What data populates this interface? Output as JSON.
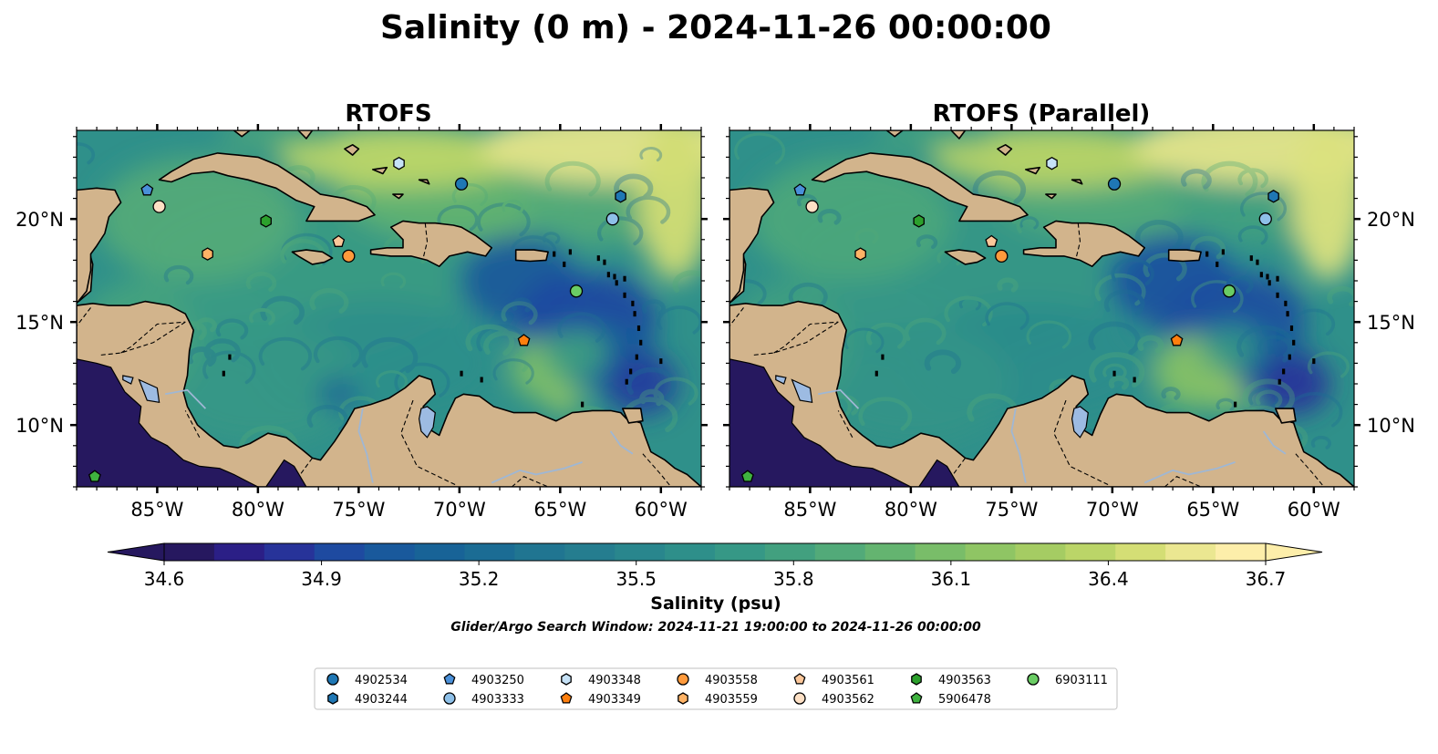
{
  "title": "Salinity (0 m) - 2024-11-26 00:00:00",
  "panels": [
    {
      "title": "RTOFS",
      "y_ticks_side": "left"
    },
    {
      "title": "RTOFS (Parallel)",
      "y_ticks_side": "right"
    }
  ],
  "map": {
    "lon_range": [
      -89,
      -58
    ],
    "lat_range": [
      7,
      24.3
    ],
    "lon_ticks": [
      {
        "v": -85,
        "label": "85°W"
      },
      {
        "v": -80,
        "label": "80°W"
      },
      {
        "v": -75,
        "label": "75°W"
      },
      {
        "v": -70,
        "label": "70°W"
      },
      {
        "v": -65,
        "label": "65°W"
      },
      {
        "v": -60,
        "label": "60°W"
      }
    ],
    "lat_ticks": [
      {
        "v": 10,
        "label": "10°N"
      },
      {
        "v": 15,
        "label": "15°N"
      },
      {
        "v": 20,
        "label": "20°N"
      }
    ],
    "land_color": "#d2b48c",
    "lake_color": "#9dbbe2",
    "river_color": "#9fb7d4"
  },
  "colorbar": {
    "ticks": [
      "34.6",
      "34.9",
      "35.2",
      "35.5",
      "35.8",
      "36.1",
      "36.4",
      "36.7"
    ],
    "label": "Salinity (psu)",
    "colors": [
      "#26185f",
      "#2b1f86",
      "#273399",
      "#1e4aa0",
      "#19599c",
      "#186397",
      "#1b6c94",
      "#207591",
      "#257d8f",
      "#29868d",
      "#2e8f8a",
      "#369886",
      "#42a07f",
      "#52aa79",
      "#64b470",
      "#79bd69",
      "#8fc564",
      "#a5cc63",
      "#bbd568",
      "#d4de75",
      "#ebe791",
      "#fdeeaa"
    ]
  },
  "subtitle": "Glider/Argo Search Window: 2024-11-21 19:00:00 to 2024-11-26 00:00:00",
  "legend": [
    {
      "id": "4902534",
      "marker": "circle",
      "color": "#1f77b4"
    },
    {
      "id": "4903244",
      "marker": "hexagon",
      "color": "#1f77b4"
    },
    {
      "id": "4903250",
      "marker": "pentagon",
      "color": "#4a90d9"
    },
    {
      "id": "4903333",
      "marker": "circle",
      "color": "#8ec0e8"
    },
    {
      "id": "4903348",
      "marker": "hexagon",
      "color": "#c6e2f7"
    },
    {
      "id": "4903349",
      "marker": "pentagon",
      "color": "#ff7f0e"
    },
    {
      "id": "4903558",
      "marker": "circle",
      "color": "#ff9a3c"
    },
    {
      "id": "4903559",
      "marker": "hexagon",
      "color": "#ffb366"
    },
    {
      "id": "4903561",
      "marker": "pentagon",
      "color": "#fcc79a"
    },
    {
      "id": "4903562",
      "marker": "circle",
      "color": "#fde0c5"
    },
    {
      "id": "4903563",
      "marker": "hexagon",
      "color": "#2ca02c"
    },
    {
      "id": "5906478",
      "marker": "pentagon",
      "color": "#3fb23f"
    },
    {
      "id": "6903111",
      "marker": "circle",
      "color": "#6acc64"
    }
  ],
  "stations": [
    {
      "id": "4903348",
      "lon": -73,
      "lat": 22.7
    },
    {
      "id": "4902534",
      "lon": -69.9,
      "lat": 21.7
    },
    {
      "id": "4903250",
      "lon": -85.5,
      "lat": 21.4
    },
    {
      "id": "4903244",
      "lon": -62.0,
      "lat": 21.1
    },
    {
      "id": "4903562",
      "lon": -84.9,
      "lat": 20.6
    },
    {
      "id": "4903333",
      "lon": -62.4,
      "lat": 20.0
    },
    {
      "id": "4903563",
      "lon": -79.6,
      "lat": 19.9
    },
    {
      "id": "4903561",
      "lon": -76.0,
      "lat": 18.9
    },
    {
      "id": "4903559",
      "lon": -82.5,
      "lat": 18.3
    },
    {
      "id": "4903558",
      "lon": -75.5,
      "lat": 18.2
    },
    {
      "id": "6903111",
      "lon": -64.2,
      "lat": 16.5
    },
    {
      "id": "4903349",
      "lon": -66.8,
      "lat": 14.1
    },
    {
      "id": "5906478",
      "lon": -88.1,
      "lat": 7.5
    }
  ]
}
